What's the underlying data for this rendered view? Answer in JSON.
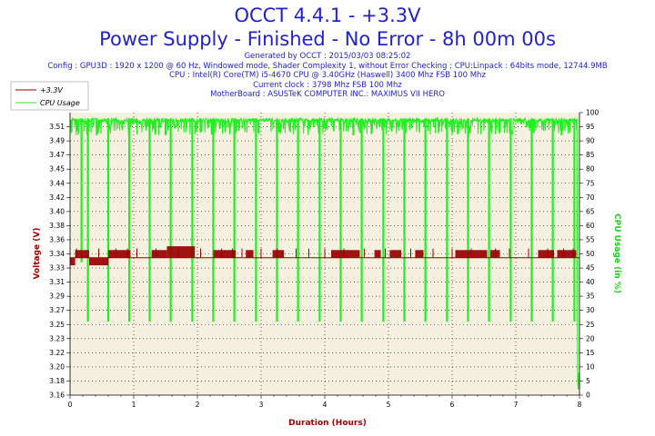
{
  "header": {
    "title": "OCCT 4.4.1 - +3.3V",
    "subtitle": "Power Supply - Finished - No Error - 8h 00m 00s",
    "generated": "Generated by OCCT : 2015/03/03 08:25:02",
    "config": "Config : GPU3D : 1920 x 1200 @ 60 Hz, Windowed mode, Shader Complexity 1, without Error Checking ; CPU:Linpack : 64bits mode, 12744.9MB",
    "cpu": "CPU : Intel(R) Core(TM) i5-4670 CPU @ 3.40GHz (Haswell) 3400 Mhz FSB 100 Mhz",
    "clock": "Current clock : 3798 Mhz FSB 100 Mhz",
    "motherboard": "MotherBoard : ASUSTeK COMPUTER INC.: MAXIMUS VII HERO"
  },
  "colors": {
    "title": "#2222cc",
    "voltage": "#990000",
    "cpu": "#22ee22",
    "plot_bg": "#f5f0e0"
  },
  "chart_data": {
    "type": "line",
    "xlabel": "Duration (Hours)",
    "ylabel": "Voltage (V)",
    "y2label": "CPU Usage (in %)",
    "xlim": [
      0,
      8
    ],
    "ylim": [
      3.16,
      3.53
    ],
    "y2lim": [
      0,
      100
    ],
    "x_ticks": [
      "0",
      "1",
      "2",
      "3",
      "4",
      "5",
      "6",
      "7",
      "8"
    ],
    "y_ticks": [
      "3.16",
      "3.18",
      "3.20",
      "3.22",
      "3.23",
      "3.25",
      "3.27",
      "3.29",
      "3.31",
      "3.33",
      "3.34",
      "3.36",
      "3.38",
      "3.40",
      "3.42",
      "3.44",
      "3.45",
      "3.47",
      "3.49",
      "3.51"
    ],
    "y2_ticks": [
      "0",
      "5",
      "10",
      "15",
      "20",
      "25",
      "30",
      "35",
      "40",
      "45",
      "50",
      "55",
      "60",
      "65",
      "70",
      "75",
      "80",
      "85",
      "90",
      "95",
      "100"
    ],
    "grid": true,
    "legend_position": "top-left",
    "series": [
      {
        "name": "+3.3V",
        "axis": "left",
        "baseline": 3.34,
        "segments": [
          {
            "x": [
              0.0,
              0.08
            ],
            "y": 3.33
          },
          {
            "x": [
              0.08,
              0.3
            ],
            "y": 3.35
          },
          {
            "x": [
              0.3,
              0.6
            ],
            "y": 3.33
          },
          {
            "x": [
              0.6,
              0.95
            ],
            "y": 3.35
          },
          {
            "x": [
              1.28,
              1.52
            ],
            "y": 3.35
          },
          {
            "x": [
              1.52,
              1.96
            ],
            "y": 3.355
          },
          {
            "x": [
              2.25,
              2.6
            ],
            "y": 3.35
          },
          {
            "x": [
              2.76,
              2.88
            ],
            "y": 3.35
          },
          {
            "x": [
              3.18,
              3.36
            ],
            "y": 3.35
          },
          {
            "x": [
              4.1,
              4.55
            ],
            "y": 3.35
          },
          {
            "x": [
              4.78,
              4.88
            ],
            "y": 3.35
          },
          {
            "x": [
              5.02,
              5.2
            ],
            "y": 3.35
          },
          {
            "x": [
              5.42,
              5.55
            ],
            "y": 3.35
          },
          {
            "x": [
              6.05,
              6.55
            ],
            "y": 3.35
          },
          {
            "x": [
              6.6,
              6.75
            ],
            "y": 3.35
          },
          {
            "x": [
              7.35,
              7.6
            ],
            "y": 3.35
          },
          {
            "x": [
              7.65,
              7.95
            ],
            "y": 3.35
          }
        ],
        "spikes": [
          0.1,
          0.45,
          0.72,
          0.9,
          1.05,
          1.35,
          1.7,
          2.05,
          2.38,
          2.55,
          2.7,
          3.0,
          3.25,
          3.55,
          3.75,
          4.0,
          4.3,
          4.62,
          4.95,
          5.35,
          5.7,
          6.0,
          6.3,
          6.68,
          6.9,
          7.2,
          7.5,
          7.75,
          7.9
        ]
      },
      {
        "name": "CPU Usage",
        "axis": "right",
        "level": 98,
        "dips": [
          {
            "x": 0.18,
            "y": 47
          },
          {
            "x": 0.28,
            "y": 26
          },
          {
            "x": 0.42,
            "y": 92
          },
          {
            "x": 0.6,
            "y": 26
          },
          {
            "x": 0.93,
            "y": 26
          },
          {
            "x": 1.25,
            "y": 26
          },
          {
            "x": 1.5,
            "y": 92
          },
          {
            "x": 1.58,
            "y": 26
          },
          {
            "x": 1.92,
            "y": 26
          },
          {
            "x": 2.05,
            "y": 93
          },
          {
            "x": 2.25,
            "y": 26
          },
          {
            "x": 2.58,
            "y": 26
          },
          {
            "x": 2.92,
            "y": 26
          },
          {
            "x": 3.25,
            "y": 26
          },
          {
            "x": 3.58,
            "y": 26
          },
          {
            "x": 3.92,
            "y": 26
          },
          {
            "x": 4.25,
            "y": 26
          },
          {
            "x": 4.45,
            "y": 92
          },
          {
            "x": 4.58,
            "y": 26
          },
          {
            "x": 4.92,
            "y": 26
          },
          {
            "x": 5.25,
            "y": 26
          },
          {
            "x": 5.58,
            "y": 26
          },
          {
            "x": 5.92,
            "y": 26
          },
          {
            "x": 6.25,
            "y": 26
          },
          {
            "x": 6.58,
            "y": 26
          },
          {
            "x": 6.75,
            "y": 93
          },
          {
            "x": 6.92,
            "y": 26
          },
          {
            "x": 7.25,
            "y": 26
          },
          {
            "x": 7.58,
            "y": 26
          },
          {
            "x": 7.72,
            "y": 92
          },
          {
            "x": 7.92,
            "y": 26
          }
        ],
        "end": [
          {
            "x": 7.96,
            "y": 98
          },
          {
            "x": 7.97,
            "y": 5
          },
          {
            "x": 7.98,
            "y": 2
          },
          {
            "x": 7.99,
            "y": 8
          },
          {
            "x": 8.0,
            "y": 2
          }
        ]
      }
    ]
  }
}
